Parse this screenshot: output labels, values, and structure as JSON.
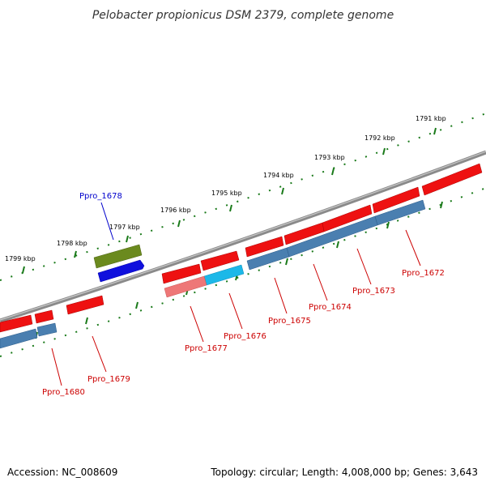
{
  "title": "Pelobacter propionicus DSM 2379, complete genome",
  "accession": "Accession: NC_008609",
  "info": "Topology: circular; Length: 4,008,000 bp; Genes: 3,643",
  "colors": {
    "backbone": "#777777",
    "ticks": "#1a7a1a",
    "gene_red": "#ee1111",
    "gene_pink": "#ee7777",
    "gene_cyan": "#1cb8e8",
    "gene_steel": "#4a7fb0",
    "gene_olive": "#6b8a1e",
    "gene_blue": "#1010dd",
    "label_red": "#cc0000",
    "label_blue": "#0000cc"
  },
  "ticks": [
    {
      "label": "1791 kbp"
    },
    {
      "label": "1792 kbp"
    },
    {
      "label": "1793 kbp"
    },
    {
      "label": "1794 kbp"
    },
    {
      "label": "1795 kbp"
    },
    {
      "label": "1796 kbp"
    },
    {
      "label": "1797 kbp"
    },
    {
      "label": "1798 kbp"
    },
    {
      "label": "1799 kbp"
    }
  ],
  "genes": [
    {
      "name": "Ppro_1672",
      "color": "gene_red"
    },
    {
      "name": "Ppro_1673",
      "color": "gene_red"
    },
    {
      "name": "Ppro_1674",
      "color": "gene_red"
    },
    {
      "name": "Ppro_1675",
      "color": "gene_red"
    },
    {
      "name": "Ppro_1676",
      "color": "gene_red"
    },
    {
      "name": "Ppro_1677",
      "color": "gene_red"
    },
    {
      "name": "Ppro_1678",
      "color": "gene_blue"
    },
    {
      "name": "Ppro_1679",
      "color": "gene_red"
    },
    {
      "name": "Ppro_1680",
      "color": "gene_red"
    }
  ]
}
